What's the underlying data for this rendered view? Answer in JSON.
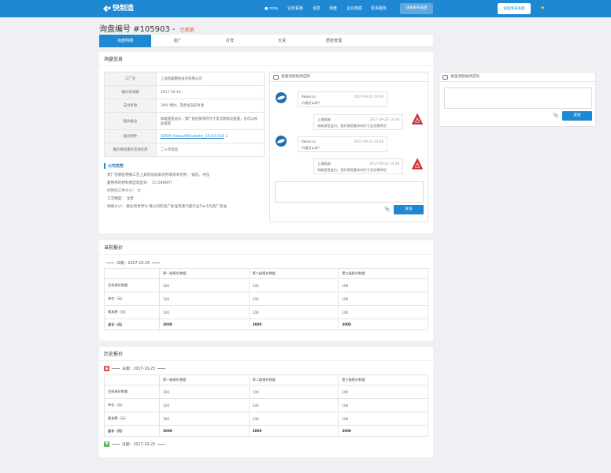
{
  "header": {
    "logo": "快制造",
    "user": "nina",
    "nav": [
      "业务看板",
      "消息",
      "询盘",
      "企业档案",
      "更多服务"
    ],
    "btn_post": "快速发布询盘",
    "btn_post2": "快速发布询盘",
    "colors": {
      "bar": "#1f88d2",
      "accent_red": "#e34a3b"
    }
  },
  "title": {
    "text": "询盘编号 #105903",
    "sep": "-",
    "status": "已拒绝"
  },
  "tabs": [
    "询盘明细",
    "验厂",
    "打样",
    "大货",
    "质检管理"
  ],
  "info_card": {
    "heading": "询盘信息",
    "rows": [
      {
        "k": "工厂名",
        "v": "上海凯越精密技术有限公司"
      },
      {
        "k": "报价有效期",
        "v": "2017-10-10"
      },
      {
        "k": "支付条款",
        "v": "30% 预付，其余出货前付清"
      },
      {
        "k": "报价备注",
        "v": "如能接受此价，我厂按您要求的尺寸及交期保证质量，也可以按此接受"
      },
      {
        "k": "报价附件",
        "v": "[STEP] AdobeAIRInstaller_25.0.0.134"
      },
      {
        "k": "跟价格因素外其他优势",
        "v": "二十年经验"
      }
    ],
    "advantage_title": "公司优势",
    "advantage_lines": [
      "贵厂在哪些特殊工艺上具有低成本优势或技术优势：  锻造、冲压",
      "最熟悉的材料牌型或型号：  1Cr18Ni9Ti",
      "优势的工件大小：  大",
      "工艺精度：  注塑",
      "地域大小：  能达到世界%  我公司的验厂标准或者汽配行业Tier1的验厂标准"
    ]
  },
  "chat": {
    "heading": "发送消息给供应商",
    "messages": [
      {
        "name": "Rebecca",
        "time": "2017-09-20  14:39",
        "text": "价格怎么样？",
        "side": "left"
      },
      {
        "name": "上海凯越",
        "time": "2017-09-20  14:39",
        "text": "如能接受此价，我们按您要求的尺寸及交期供货",
        "side": "right"
      },
      {
        "name": "Rebecca",
        "time": "2017-09-20  14:39",
        "text": "价格怎么样？",
        "side": "left"
      },
      {
        "name": "上海凯越",
        "time": "2017-09-20  14:39",
        "text": "如能接受此价，我们按您要求的尺寸及交期供货",
        "side": "right"
      }
    ],
    "send": "发送"
  },
  "side_chat": {
    "heading": "发送消息给供应商",
    "send": "发送"
  },
  "current_quote": {
    "heading": "当前报价",
    "date": "日期：2017-10-25",
    "headers": [
      "",
      "第一级报价数据",
      "第二级报价数据",
      "第三级报价数据"
    ],
    "rows": [
      {
        "label": "目标报价数量",
        "vals": [
          "100",
          "100",
          "100"
        ]
      },
      {
        "label": "单价（元）",
        "vals": [
          "100",
          "100",
          "100"
        ]
      },
      {
        "label": "模具费（元）",
        "vals": [
          "100",
          "100",
          "100"
        ]
      },
      {
        "label": "总计（元）",
        "vals": [
          "3000",
          "3000",
          "3000"
        ]
      }
    ]
  },
  "history_quote": {
    "heading": "历史报价",
    "date1": "日期：2017-10-25",
    "date2": "日期：2017-10-25",
    "headers": [
      "",
      "第一级报价数据",
      "第二级报价数据",
      "第三级报价数据"
    ],
    "rows": [
      {
        "label": "目标报价数量",
        "vals": [
          "100",
          "100",
          "100"
        ]
      },
      {
        "label": "单价（元）",
        "vals": [
          "100",
          "100",
          "100"
        ]
      },
      {
        "label": "模具费（元）",
        "vals": [
          "100",
          "100",
          "100"
        ]
      },
      {
        "label": "总计（元）",
        "vals": [
          "3000",
          "3000",
          "3000"
        ]
      }
    ]
  }
}
